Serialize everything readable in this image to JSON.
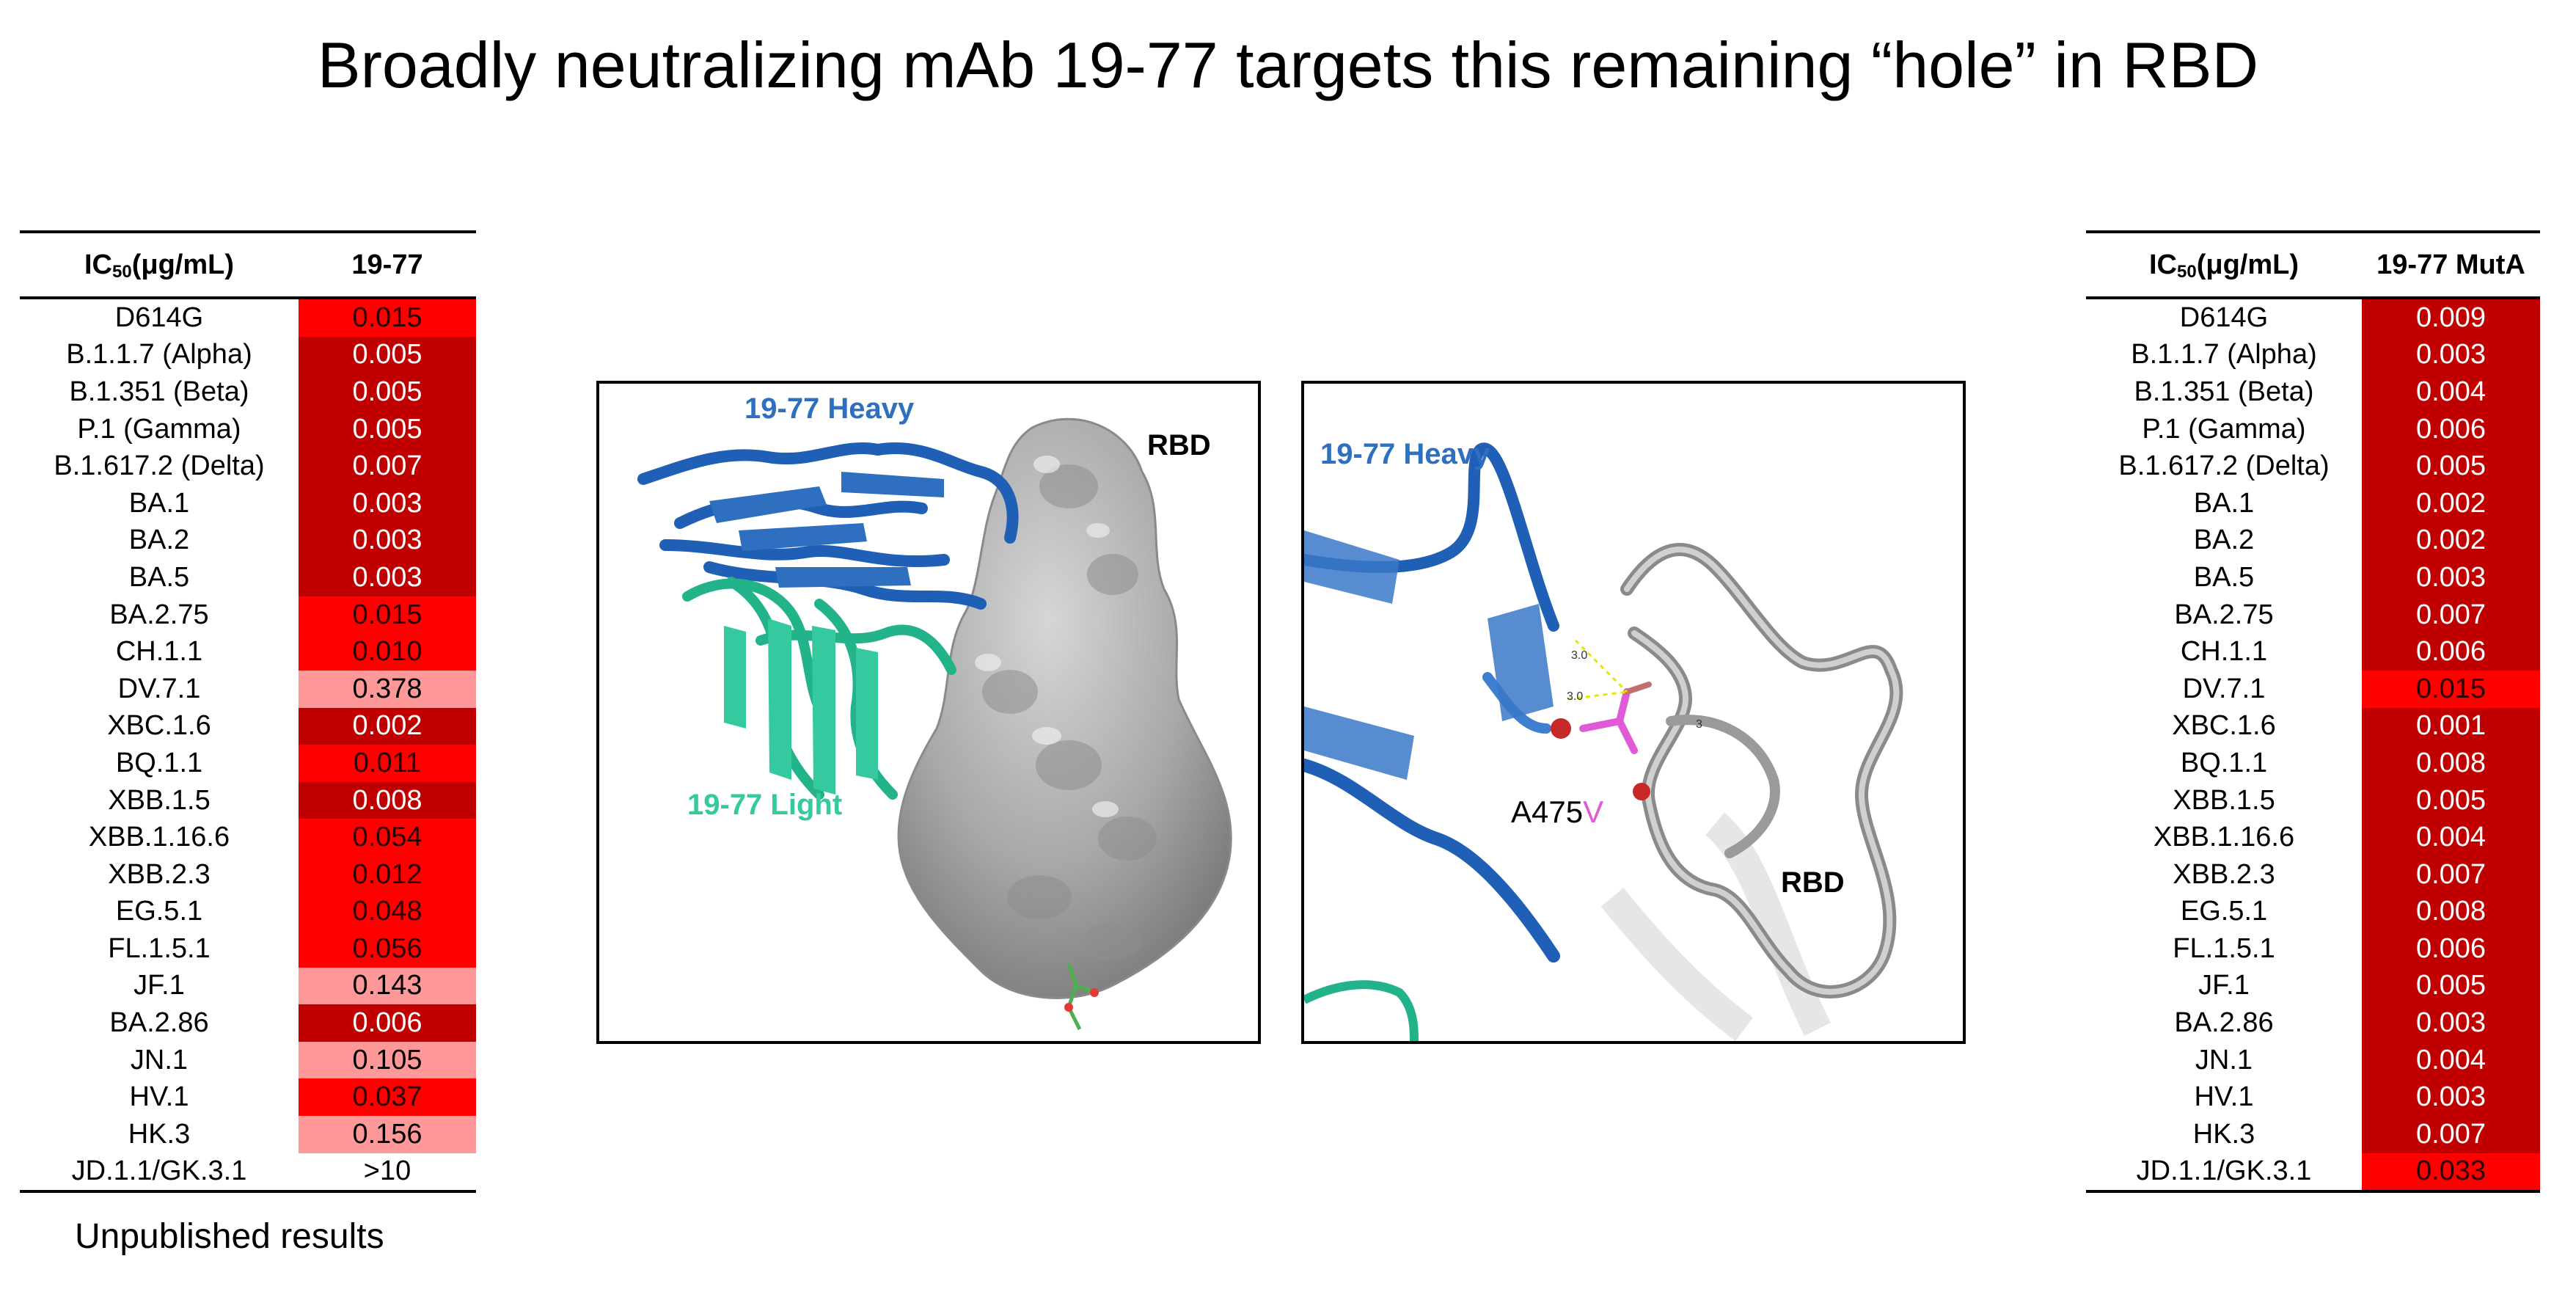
{
  "title": "Broadly neutralizing mAb 19-77 targets this remaining “hole” in RBD",
  "colors": {
    "dark_red": "#c00000",
    "red": "#ff0000",
    "pink": "#ff9999",
    "heavy_blue": "#2e6fc0",
    "light_green": "#35c9a0",
    "rbd_gray": "#a8a8a8",
    "mutation_magenta": "#e05ad8"
  },
  "left_table": {
    "header_main": "IC",
    "header_sub": "50",
    "header_unit": " (μg/mL)",
    "header_antibody": "19-77",
    "rows": [
      {
        "variant": "D614G",
        "value": "0.015",
        "shade": "red"
      },
      {
        "variant": "B.1.1.7 (Alpha)",
        "value": "0.005",
        "shade": "dark"
      },
      {
        "variant": "B.1.351 (Beta)",
        "value": "0.005",
        "shade": "dark"
      },
      {
        "variant": "P.1 (Gamma)",
        "value": "0.005",
        "shade": "dark"
      },
      {
        "variant": "B.1.617.2 (Delta)",
        "value": "0.007",
        "shade": "dark"
      },
      {
        "variant": "BA.1",
        "value": "0.003",
        "shade": "dark"
      },
      {
        "variant": "BA.2",
        "value": "0.003",
        "shade": "dark"
      },
      {
        "variant": "BA.5",
        "value": "0.003",
        "shade": "dark"
      },
      {
        "variant": "BA.2.75",
        "value": "0.015",
        "shade": "red"
      },
      {
        "variant": "CH.1.1",
        "value": "0.010",
        "shade": "red"
      },
      {
        "variant": "DV.7.1",
        "value": "0.378",
        "shade": "pink"
      },
      {
        "variant": "XBC.1.6",
        "value": "0.002",
        "shade": "dark"
      },
      {
        "variant": "BQ.1.1",
        "value": "0.011",
        "shade": "red"
      },
      {
        "variant": "XBB.1.5",
        "value": "0.008",
        "shade": "dark"
      },
      {
        "variant": "XBB.1.16.6",
        "value": "0.054",
        "shade": "red"
      },
      {
        "variant": "XBB.2.3",
        "value": "0.012",
        "shade": "red"
      },
      {
        "variant": "EG.5.1",
        "value": "0.048",
        "shade": "red"
      },
      {
        "variant": "FL.1.5.1",
        "value": "0.056",
        "shade": "red"
      },
      {
        "variant": "JF.1",
        "value": "0.143",
        "shade": "pink"
      },
      {
        "variant": "BA.2.86",
        "value": "0.006",
        "shade": "dark"
      },
      {
        "variant": "JN.1",
        "value": "0.105",
        "shade": "pink"
      },
      {
        "variant": "HV.1",
        "value": "0.037",
        "shade": "red"
      },
      {
        "variant": "HK.3",
        "value": "0.156",
        "shade": "pink"
      },
      {
        "variant": "JD.1.1/GK.3.1",
        "value": ">10",
        "shade": "none"
      }
    ]
  },
  "right_table": {
    "header_main": "IC",
    "header_sub": "50",
    "header_unit": " (μg/mL)",
    "header_antibody": "19-77 MutA",
    "rows": [
      {
        "variant": "D614G",
        "value": "0.009",
        "shade": "dark"
      },
      {
        "variant": "B.1.1.7 (Alpha)",
        "value": "0.003",
        "shade": "dark"
      },
      {
        "variant": "B.1.351 (Beta)",
        "value": "0.004",
        "shade": "dark"
      },
      {
        "variant": "P.1 (Gamma)",
        "value": "0.006",
        "shade": "dark"
      },
      {
        "variant": "B.1.617.2 (Delta)",
        "value": "0.005",
        "shade": "dark"
      },
      {
        "variant": "BA.1",
        "value": "0.002",
        "shade": "dark"
      },
      {
        "variant": "BA.2",
        "value": "0.002",
        "shade": "dark"
      },
      {
        "variant": "BA.5",
        "value": "0.003",
        "shade": "dark"
      },
      {
        "variant": "BA.2.75",
        "value": "0.007",
        "shade": "dark"
      },
      {
        "variant": "CH.1.1",
        "value": "0.006",
        "shade": "dark"
      },
      {
        "variant": "DV.7.1",
        "value": "0.015",
        "shade": "red"
      },
      {
        "variant": "XBC.1.6",
        "value": "0.001",
        "shade": "dark"
      },
      {
        "variant": "BQ.1.1",
        "value": "0.008",
        "shade": "dark"
      },
      {
        "variant": "XBB.1.5",
        "value": "0.005",
        "shade": "dark"
      },
      {
        "variant": "XBB.1.16.6",
        "value": "0.004",
        "shade": "dark"
      },
      {
        "variant": "XBB.2.3",
        "value": "0.007",
        "shade": "dark"
      },
      {
        "variant": "EG.5.1",
        "value": "0.008",
        "shade": "dark"
      },
      {
        "variant": "FL.1.5.1",
        "value": "0.006",
        "shade": "dark"
      },
      {
        "variant": "JF.1",
        "value": "0.005",
        "shade": "dark"
      },
      {
        "variant": "BA.2.86",
        "value": "0.003",
        "shade": "dark"
      },
      {
        "variant": "JN.1",
        "value": "0.004",
        "shade": "dark"
      },
      {
        "variant": "HV.1",
        "value": "0.003",
        "shade": "dark"
      },
      {
        "variant": "HK.3",
        "value": "0.007",
        "shade": "dark"
      },
      {
        "variant": "JD.1.1/GK.3.1",
        "value": "0.033",
        "shade": "red"
      }
    ]
  },
  "footnote": "Unpublished results",
  "panel_a": {
    "heavy_label": "19-77 Heavy",
    "light_label": "19-77 Light",
    "rbd_label": "RBD"
  },
  "panel_b": {
    "heavy_label": "19-77 Heavy",
    "rbd_label": "RBD",
    "mutation_prefix": "A475",
    "mutation_suffix": "V",
    "distance_labels": [
      "3.0",
      "3.0",
      "3"
    ]
  }
}
